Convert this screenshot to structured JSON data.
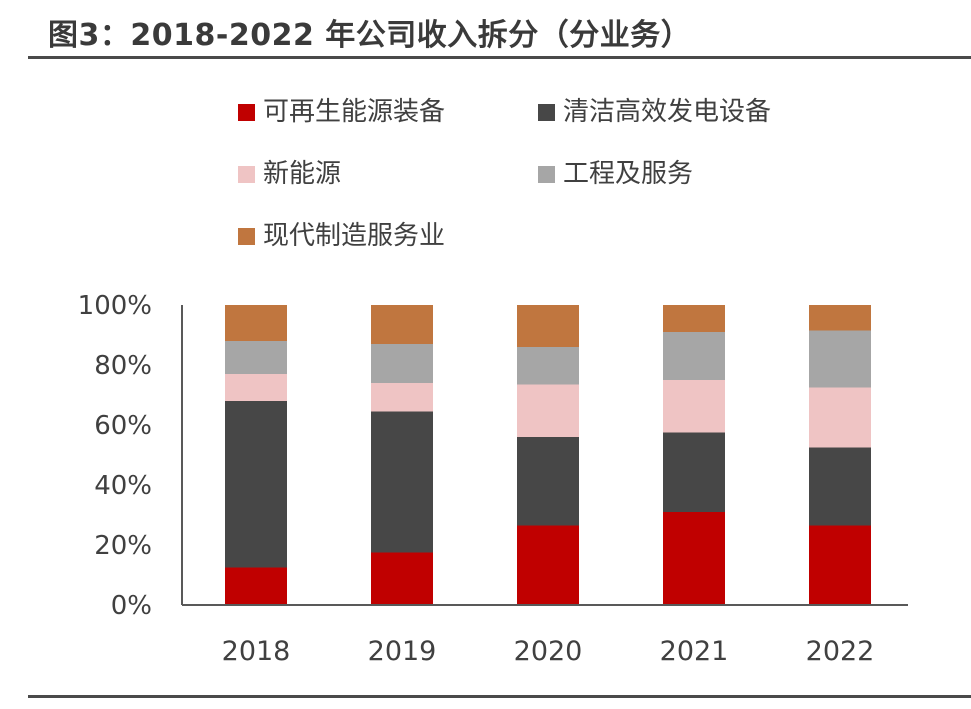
{
  "figure": {
    "title": "图3：2018-2022 年公司收入拆分（分业务）"
  },
  "chart_data": {
    "type": "bar",
    "stacked": true,
    "categories": [
      "2018",
      "2019",
      "2020",
      "2021",
      "2022"
    ],
    "series": [
      {
        "name": "可再生能源装备",
        "color": "#c00000",
        "values": [
          12.5,
          17.5,
          26.5,
          31,
          26.5
        ]
      },
      {
        "name": "清洁高效发电设备",
        "color": "#474747",
        "values": [
          55.5,
          47,
          29.5,
          26.5,
          26
        ]
      },
      {
        "name": "新能源",
        "color": "#efc4c4",
        "values": [
          9,
          9.5,
          17.5,
          17.5,
          20
        ]
      },
      {
        "name": "工程及服务",
        "color": "#a6a6a6",
        "values": [
          11,
          13,
          12.5,
          16,
          19
        ]
      },
      {
        "name": "现代制造服务业",
        "color": "#c0763f",
        "values": [
          12,
          13,
          14,
          9,
          8.5
        ]
      }
    ],
    "ylim": [
      0,
      100
    ],
    "yticks": [
      "0%",
      "20%",
      "40%",
      "60%",
      "80%",
      "100%"
    ],
    "grid": false,
    "legend_position": "top"
  }
}
